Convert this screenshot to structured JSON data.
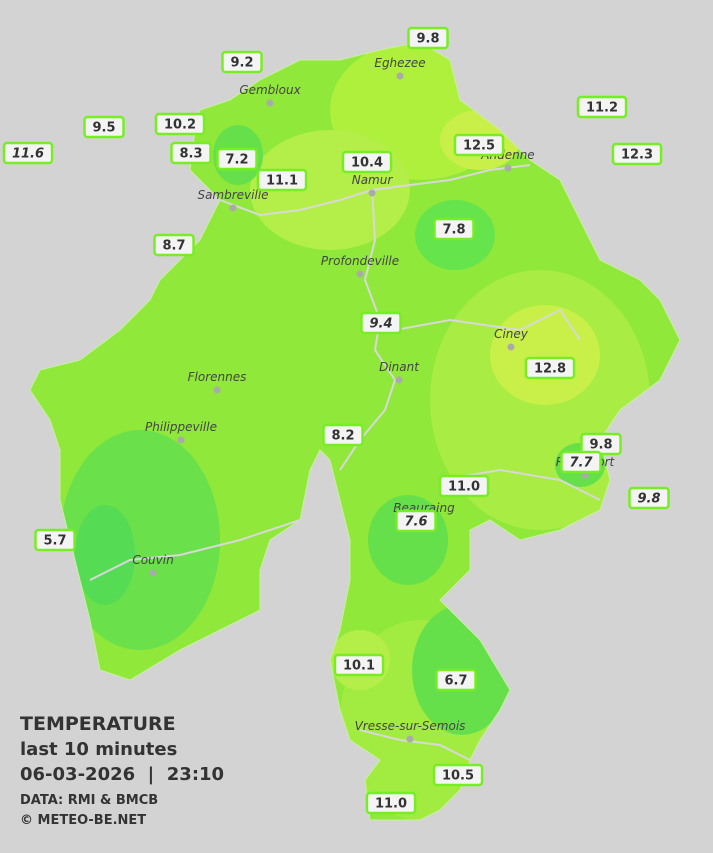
{
  "stations": [
    {
      "value": "9.8"
    },
    {
      "value": "9.2"
    },
    {
      "value": "9.5"
    },
    {
      "value": "10.2"
    },
    {
      "value": "11.2"
    },
    {
      "value": "11.6",
      "italic": true
    },
    {
      "value": "8.3"
    },
    {
      "value": "7.2"
    },
    {
      "value": "12.5"
    },
    {
      "value": "12.3"
    },
    {
      "value": "10.4"
    },
    {
      "value": "11.1"
    },
    {
      "value": "7.8"
    },
    {
      "value": "8.7"
    },
    {
      "value": "9.4",
      "italic": true
    },
    {
      "value": "12.8"
    },
    {
      "value": "8.2"
    },
    {
      "value": "9.8"
    },
    {
      "value": "7.7",
      "italic": true
    },
    {
      "value": "11.0"
    },
    {
      "value": "9.8",
      "italic": true
    },
    {
      "value": "7.6",
      "italic": true
    },
    {
      "value": "5.7"
    },
    {
      "value": "10.1"
    },
    {
      "value": "6.7"
    },
    {
      "value": "10.5"
    },
    {
      "value": "11.0"
    }
  ],
  "places": [
    "Eghezee",
    "Gembloux",
    "Andenne",
    "Namur",
    "Sambreville",
    "Profondeville",
    "Ciney",
    "Dinant",
    "Florennes",
    "Philippeville",
    "Beauraing",
    "Rochefort",
    "Couvin",
    "Vresse-sur-Semois"
  ],
  "legend": {
    "title": "TEMPERATURE",
    "period": "last 10 minutes",
    "datetime": "06-03-2026  |  23:10",
    "source": "DATA: RMI & BMCB",
    "copyright": "© METEO-BE.NET"
  }
}
